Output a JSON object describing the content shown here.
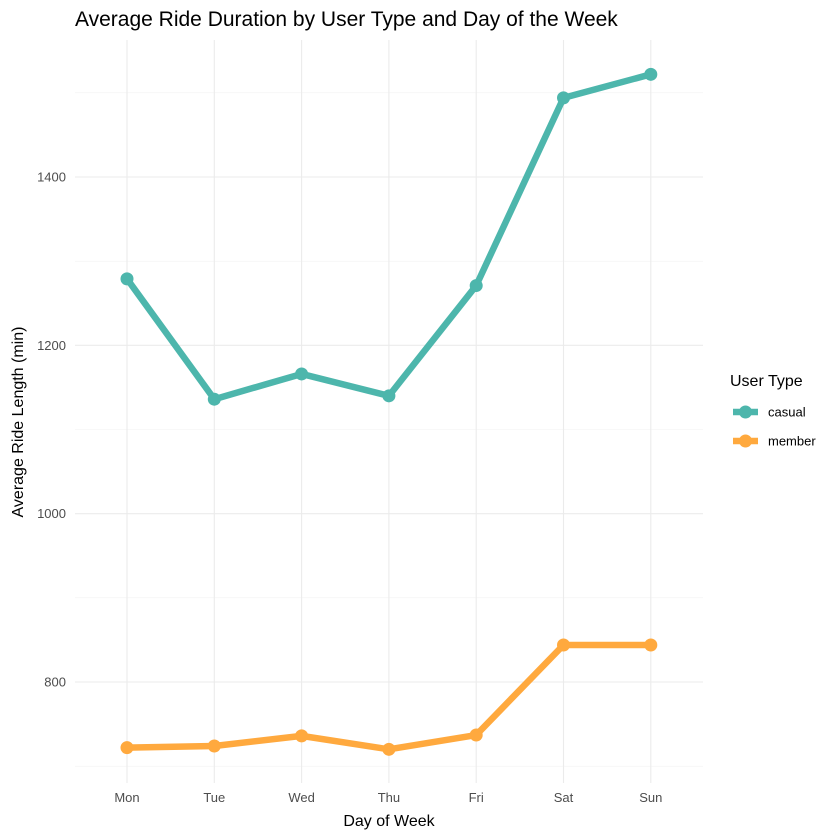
{
  "chart_data": {
    "type": "line",
    "title": "Average Ride Duration by User Type and Day of the Week",
    "xlabel": "Day of Week",
    "ylabel": "Average Ride Length (min)",
    "categories": [
      "Mon",
      "Tue",
      "Wed",
      "Thu",
      "Fri",
      "Sat",
      "Sun"
    ],
    "ylim": [
      700,
      1550
    ],
    "y_ticks": [
      800,
      1000,
      1200,
      1400
    ],
    "y_minor_ticks": [
      700,
      900,
      1100,
      1300,
      1500
    ],
    "grid": true,
    "legend": {
      "title": "User Type",
      "position": "right"
    },
    "series": [
      {
        "name": "casual",
        "color": "#4db6ac",
        "values": [
          1279,
          1136,
          1166,
          1140,
          1271,
          1494,
          1522
        ]
      },
      {
        "name": "member",
        "color": "#ffa93e",
        "values": [
          722,
          724,
          736,
          720,
          737,
          844,
          844
        ]
      }
    ]
  }
}
